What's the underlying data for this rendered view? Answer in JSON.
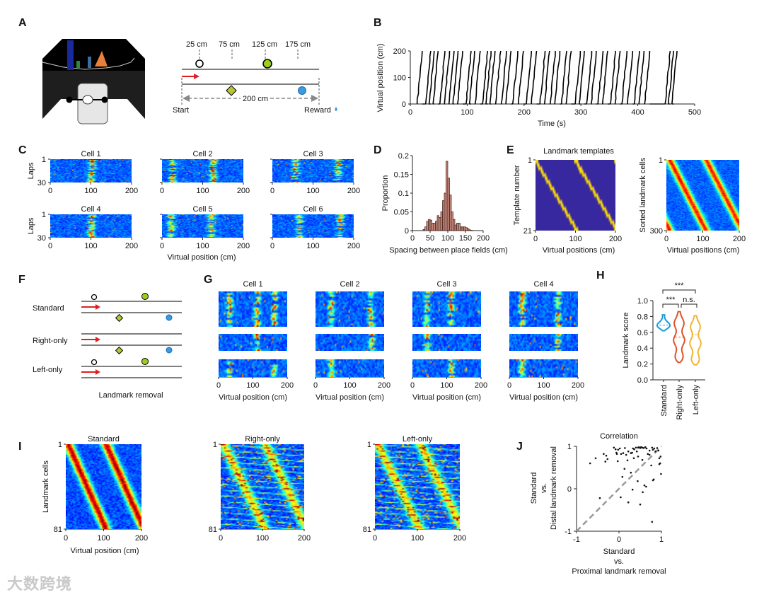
{
  "panels": {
    "A": "A",
    "B": "B",
    "C": "C",
    "D": "D",
    "E": "E",
    "F": "F",
    "G": "G",
    "H": "H",
    "I": "I",
    "J": "J"
  },
  "A": {
    "distances": [
      "25 cm",
      "75 cm",
      "125 cm",
      "175 cm"
    ],
    "track_length": "200 cm",
    "start": "Start",
    "reward": "Reward"
  },
  "B": {
    "xlabel": "Time (s)",
    "ylabel": "Virtual position (cm)",
    "xticks": [
      0,
      100,
      200,
      300,
      400,
      500
    ],
    "yticks": [
      0,
      100,
      200
    ],
    "lap_starts": [
      12,
      27,
      33,
      40,
      52,
      60,
      68,
      75,
      83,
      98,
      104,
      114,
      127,
      133,
      140,
      150,
      160,
      168,
      180,
      190,
      204,
      213,
      228,
      236,
      246,
      254,
      266,
      274,
      290,
      297,
      310,
      318,
      330,
      338,
      352,
      360,
      372,
      382,
      394,
      402,
      412,
      448,
      454,
      460
    ],
    "lap_duration": 9
  },
  "C": {
    "cells": [
      "Cell 1",
      "Cell 2",
      "Cell 3",
      "Cell 4",
      "Cell 5",
      "Cell 6"
    ],
    "ylabel": "Laps",
    "yticks": [
      "1",
      "30"
    ],
    "xticks": [
      "0",
      "100",
      "200"
    ],
    "xlabel": "Virtual position (cm)",
    "fields": [
      [
        100
      ],
      [
        25,
        125
      ],
      [
        55,
        160
      ],
      [
        100
      ],
      [
        20,
        120
      ],
      [
        65,
        165
      ]
    ]
  },
  "D": {
    "xlabel": "Spacing between place fields (cm)",
    "ylabel": "Proportion",
    "xticks": [
      0,
      50,
      100,
      150,
      200
    ],
    "yticks": [
      "0",
      "0.05",
      "0.1",
      "0.15",
      "0.2"
    ],
    "bin_width": 5,
    "bin_starts": [
      30,
      35,
      40,
      45,
      50,
      55,
      60,
      65,
      70,
      75,
      80,
      85,
      90,
      95,
      100,
      105,
      110,
      115,
      120,
      125,
      130,
      135,
      140,
      145,
      150,
      155,
      160,
      165
    ],
    "values": [
      0.003,
      0.01,
      0.025,
      0.03,
      0.028,
      0.02,
      0.02,
      0.025,
      0.04,
      0.035,
      0.05,
      0.08,
      0.1,
      0.185,
      0.14,
      0.095,
      0.05,
      0.03,
      0.015,
      0.02,
      0.02,
      0.01,
      0.01,
      0.01,
      0.008,
      0.005,
      0.002,
      0.001
    ]
  },
  "E": {
    "title": "Landmark templates",
    "ylabel_left": "Template number",
    "yticks_left": [
      "1",
      "21"
    ],
    "ylabel_right": "Sorted landmark cells",
    "yticks_right": [
      "1",
      "300"
    ],
    "xlabel": "Virtual positions (cm)",
    "xticks": [
      "0",
      "100",
      "200"
    ]
  },
  "F": {
    "conditions": [
      "Standard",
      "Right-only",
      "Left-only"
    ],
    "caption": "Landmark removal"
  },
  "G": {
    "cells": [
      "Cell 1",
      "Cell 2",
      "Cell 3",
      "Cell 4"
    ],
    "xlabel": "Virtual position (cm)",
    "xticks": [
      "0",
      "100",
      "200"
    ],
    "fields": [
      [
        30,
        110,
        160
      ],
      [
        45,
        160
      ],
      [
        110,
        40
      ],
      [
        35,
        140
      ]
    ]
  },
  "H": {
    "ylabel": "Landmark score",
    "yticks": [
      "0.0",
      "0.2",
      "0.4",
      "0.6",
      "0.8",
      "1.0"
    ],
    "groups": [
      "Standard",
      "Right-only",
      "Left-only"
    ],
    "colors": [
      "#1a9bd7",
      "#e0522a",
      "#f2b534"
    ],
    "medians": [
      0.69,
      0.54,
      0.57
    ],
    "ranges": [
      [
        0.62,
        0.82
      ],
      [
        0.22,
        0.86
      ],
      [
        0.19,
        0.81
      ]
    ],
    "sig": [
      "***",
      "***",
      "n.s."
    ]
  },
  "I": {
    "titles": [
      "Standard",
      "Right-only",
      "Left-only"
    ],
    "ylabel": "Landmark cells",
    "yticks": [
      "1",
      "81"
    ],
    "xticks": [
      "0",
      "100",
      "200"
    ],
    "xlabel": "Virtual position (cm)"
  },
  "J": {
    "title": "Correlation",
    "xlabel": [
      "Standard",
      "vs.",
      "Proximal landmark removal"
    ],
    "ylabel": [
      "Standard",
      "vs.",
      "Distal landmark removal"
    ],
    "ticks": [
      "-1",
      "0",
      "1"
    ],
    "points": [
      [
        -0.68,
        0.6
      ],
      [
        -0.55,
        0.72
      ],
      [
        -0.36,
        0.82
      ],
      [
        -0.3,
        0.78
      ],
      [
        -0.32,
        0.64
      ],
      [
        -0.27,
        0.7
      ],
      [
        -0.12,
        0.97
      ],
      [
        -0.08,
        0.93
      ],
      [
        -0.06,
        0.85
      ],
      [
        -0.05,
        0.82
      ],
      [
        -0.02,
        0.92
      ],
      [
        0.02,
        0.95
      ],
      [
        0.05,
        0.82
      ],
      [
        0.1,
        0.84
      ],
      [
        0.14,
        0.96
      ],
      [
        0.17,
        0.8
      ],
      [
        0.22,
        0.88
      ],
      [
        0.28,
        0.84
      ],
      [
        0.31,
        0.85
      ],
      [
        0.33,
        0.95
      ],
      [
        0.36,
        0.93
      ],
      [
        0.4,
        0.97
      ],
      [
        0.42,
        0.88
      ],
      [
        0.45,
        0.97
      ],
      [
        0.47,
        0.98
      ],
      [
        0.5,
        0.96
      ],
      [
        0.52,
        0.98
      ],
      [
        0.55,
        0.97
      ],
      [
        0.58,
        0.96
      ],
      [
        0.62,
        0.98
      ],
      [
        0.65,
        0.95
      ],
      [
        0.68,
        0.82
      ],
      [
        0.72,
        0.8
      ],
      [
        0.78,
        0.97
      ],
      [
        0.8,
        0.92
      ],
      [
        0.83,
        0.95
      ],
      [
        0.86,
        0.88
      ],
      [
        0.9,
        0.96
      ],
      [
        0.93,
        0.9
      ],
      [
        0.95,
        0.72
      ],
      [
        0.97,
        0.6
      ],
      [
        0.98,
        0.76
      ],
      [
        0.99,
        0.35
      ],
      [
        -0.03,
        0.65
      ],
      [
        0.08,
        0.28
      ],
      [
        0.13,
        0.47
      ],
      [
        0.28,
        0.38
      ],
      [
        0.2,
        0.67
      ],
      [
        0.32,
        -0.02
      ],
      [
        0.44,
        0.18
      ],
      [
        0.56,
        -0.08
      ],
      [
        0.6,
        0.08
      ],
      [
        0.64,
        0.05
      ],
      [
        0.76,
        0.55
      ],
      [
        0.8,
        0.2
      ],
      [
        0.82,
        0.22
      ],
      [
        0.95,
        0.58
      ],
      [
        0.04,
        -0.2
      ],
      [
        0.22,
        -0.32
      ],
      [
        0.5,
        -0.37
      ],
      [
        -0.45,
        -0.22
      ],
      [
        0.78,
        -0.78
      ],
      [
        0.35,
        0.72
      ],
      [
        0.45,
        0.76
      ],
      [
        0.55,
        0.68
      ],
      [
        0.72,
        0.9
      ]
    ]
  },
  "watermark": "大数跨境"
}
